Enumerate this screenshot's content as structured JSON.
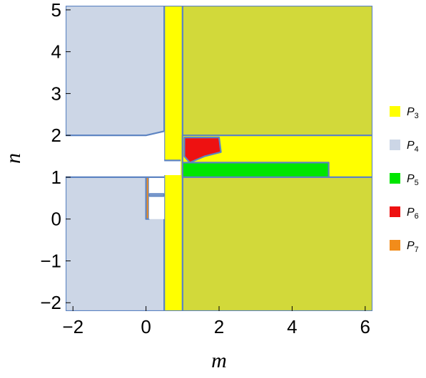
{
  "chart_data": {
    "type": "region",
    "xlabel": "m",
    "ylabel": "n",
    "xlim": [
      -2.2,
      6.2
    ],
    "ylim": [
      -2.2,
      5.1
    ],
    "x_ticks": [
      -2,
      0,
      2,
      4,
      6
    ],
    "x_tick_labels": [
      "−2",
      "0",
      "2",
      "4",
      "6"
    ],
    "y_ticks": [
      -2,
      -1,
      0,
      1,
      2,
      3,
      4,
      5
    ],
    "y_tick_labels": [
      "−2",
      "−1",
      "0",
      "1",
      "2",
      "3",
      "4",
      "5"
    ],
    "colors": {
      "P3": "#ffff00",
      "P4": "#ccd6e6",
      "P5": "#00e600",
      "P6": "#ee1111",
      "P7": "#f28c1a",
      "overlap": "#d2d93a",
      "boundary": "#5d84c2"
    },
    "legend_position": "right",
    "legend": [
      {
        "key": "P3",
        "base": "P",
        "sub": "3"
      },
      {
        "key": "P4",
        "base": "P",
        "sub": "4"
      },
      {
        "key": "P5",
        "base": "P",
        "sub": "5"
      },
      {
        "key": "P6",
        "base": "P",
        "sub": "6"
      },
      {
        "key": "P7",
        "base": "P",
        "sub": "7"
      }
    ],
    "regions": [
      {
        "name": "P4",
        "fill": "P4",
        "points": [
          [
            -2.2,
            5.1
          ],
          [
            0.5,
            5.1
          ],
          [
            0.5,
            2.05
          ],
          [
            0,
            2
          ],
          [
            -2.2,
            2
          ]
        ]
      },
      {
        "name": "P4",
        "fill": "P4",
        "points": [
          [
            -2.2,
            1
          ],
          [
            0.5,
            1
          ],
          [
            0.5,
            -2.2
          ],
          [
            -2.2,
            -2.2
          ]
        ]
      },
      {
        "name": "P3-and-P4",
        "fill": "overlap",
        "points": [
          [
            1,
            5.1
          ],
          [
            6.2,
            5.1
          ],
          [
            6.2,
            2
          ],
          [
            1,
            2
          ]
        ]
      },
      {
        "name": "P3-and-P4",
        "fill": "overlap",
        "points": [
          [
            1,
            1
          ],
          [
            6.2,
            1
          ],
          [
            6.2,
            -2.2
          ],
          [
            1,
            -2.2
          ]
        ]
      },
      {
        "name": "P3",
        "fill": "P3",
        "points": [
          [
            0.5,
            5.1
          ],
          [
            1,
            5.1
          ],
          [
            1,
            -2.2
          ],
          [
            0.5,
            -2.2
          ]
        ]
      },
      {
        "name": "P3",
        "fill": "P3",
        "points": [
          [
            1,
            2
          ],
          [
            6.2,
            2
          ],
          [
            6.2,
            1
          ],
          [
            1,
            1
          ]
        ]
      },
      {
        "name": "P5",
        "fill": "P5",
        "points": [
          [
            1,
            1.35
          ],
          [
            5,
            1.35
          ],
          [
            5,
            1
          ],
          [
            1,
            1
          ]
        ]
      },
      {
        "name": "P6",
        "fill": "P6",
        "points": [
          [
            1.05,
            1.95
          ],
          [
            2,
            1.95
          ],
          [
            2.05,
            1.6
          ],
          [
            1.6,
            1.5
          ],
          [
            1.2,
            1.35
          ],
          [
            1.05,
            1.5
          ]
        ]
      },
      {
        "name": "P7",
        "fill": "P7",
        "points": [
          [
            0,
            1
          ],
          [
            0.08,
            1
          ],
          [
            0.08,
            0
          ],
          [
            0,
            0
          ]
        ]
      },
      {
        "name": "gap",
        "fill": "#ffffff",
        "points": [
          [
            -2.2,
            2
          ],
          [
            0,
            2
          ],
          [
            0.5,
            2.1
          ],
          [
            0.5,
            1.4
          ],
          [
            0.95,
            1.4
          ],
          [
            0.95,
            1.05
          ],
          [
            0.5,
            1.05
          ],
          [
            0.5,
            1
          ],
          [
            -2.2,
            1
          ]
        ]
      },
      {
        "name": "gap",
        "fill": "#ffffff",
        "points": [
          [
            0.08,
            1
          ],
          [
            0.5,
            1
          ],
          [
            0.5,
            0.6
          ],
          [
            0.08,
            0.6
          ]
        ]
      },
      {
        "name": "gap",
        "fill": "#ffffff",
        "points": [
          [
            0.08,
            0.55
          ],
          [
            0.5,
            0.55
          ],
          [
            0.5,
            0
          ],
          [
            0.08,
            0
          ]
        ]
      }
    ]
  }
}
